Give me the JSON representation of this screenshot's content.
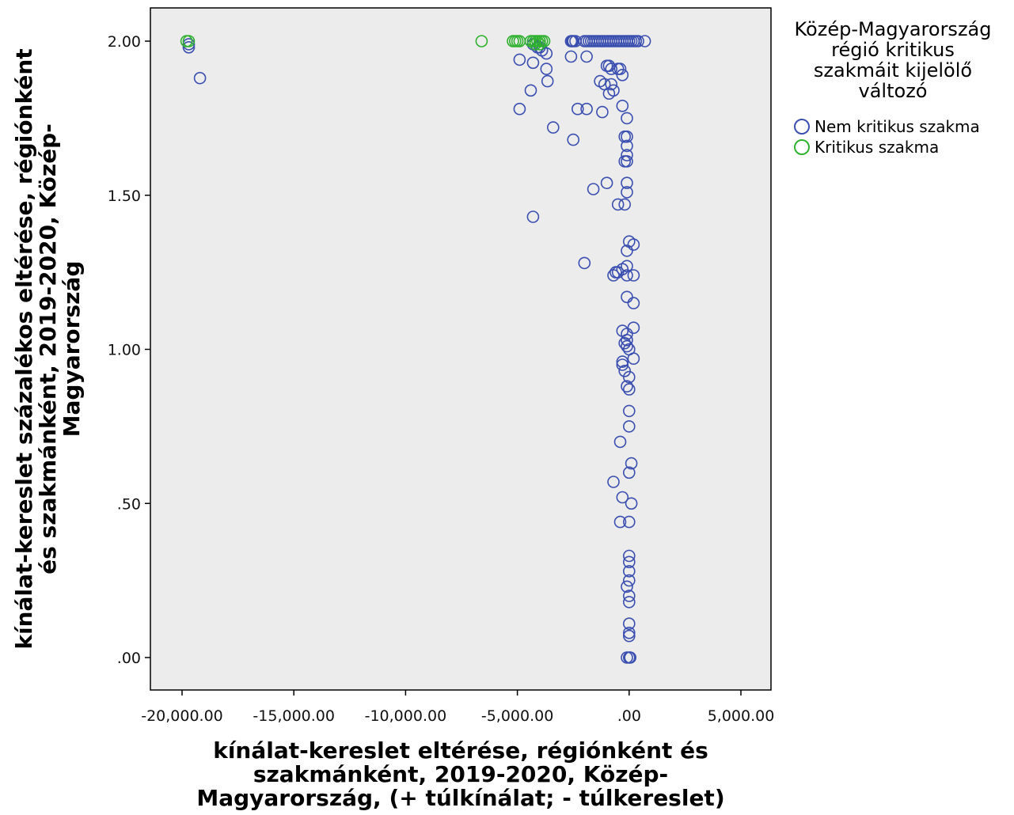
{
  "chart_data": {
    "type": "scatter",
    "xlabel_lines": [
      "kínálat-kereslet eltérése, régiónként és",
      "szakmánként, 2019-2020, Közép-",
      "Magyarország, (+ túlkínálat; - túlkereslet)"
    ],
    "ylabel_lines": [
      "kínálat-kereslet százalékos eltérése, régiónként",
      "és szakmánként, 2019-2020, Közép-",
      "Magyarország"
    ],
    "xlim": [
      -20000,
      5000
    ],
    "ylim": [
      0,
      2
    ],
    "x_ticks": [
      {
        "value": -20000,
        "label": "-20,000.00"
      },
      {
        "value": -15000,
        "label": "-15,000.00"
      },
      {
        "value": -10000,
        "label": "-10,000.00"
      },
      {
        "value": -5000,
        "label": "-5,000.00"
      },
      {
        "value": 0,
        "label": ".00"
      },
      {
        "value": 5000,
        "label": "5,000.00"
      }
    ],
    "y_ticks": [
      {
        "value": 0,
        "label": ".00"
      },
      {
        "value": 0.5,
        "label": ".50"
      },
      {
        "value": 1.0,
        "label": "1.00"
      },
      {
        "value": 1.5,
        "label": "1.50"
      },
      {
        "value": 2.0,
        "label": "2.00"
      }
    ],
    "grid": false,
    "plot_background": "#ececec",
    "legend": {
      "title_lines": [
        "Közép-Magyarország",
        "régió kritikus",
        "szakmáit kijelölő",
        "változó"
      ],
      "placement": "right"
    },
    "series": [
      {
        "name": "Nem kritikus szakma",
        "color": "#3b4fb0",
        "points": [
          [
            -19700,
            1.99
          ],
          [
            -19700,
            1.98
          ],
          [
            -19200,
            1.88
          ],
          [
            -4300,
            1.99
          ],
          [
            -4100,
            1.98
          ],
          [
            -4000,
            1.98
          ],
          [
            -3900,
            1.97
          ],
          [
            -3700,
            1.96
          ],
          [
            -3700,
            1.91
          ],
          [
            -3650,
            1.87
          ],
          [
            -4300,
            1.93
          ],
          [
            -4900,
            1.94
          ],
          [
            -4400,
            1.84
          ],
          [
            -4900,
            1.78
          ],
          [
            -3400,
            1.72
          ],
          [
            -4300,
            1.43
          ],
          [
            -2600,
            2.0
          ],
          [
            -2550,
            2.0
          ],
          [
            -2500,
            2.0
          ],
          [
            -2400,
            2.0
          ],
          [
            -2000,
            2.0
          ],
          [
            -1900,
            2.0
          ],
          [
            -1800,
            2.0
          ],
          [
            -1700,
            2.0
          ],
          [
            -1600,
            2.0
          ],
          [
            -1500,
            2.0
          ],
          [
            -1400,
            2.0
          ],
          [
            -1300,
            2.0
          ],
          [
            -1200,
            2.0
          ],
          [
            -1100,
            2.0
          ],
          [
            -1000,
            2.0
          ],
          [
            -900,
            2.0
          ],
          [
            -800,
            2.0
          ],
          [
            -700,
            2.0
          ],
          [
            -600,
            2.0
          ],
          [
            -500,
            2.0
          ],
          [
            -400,
            2.0
          ],
          [
            -300,
            2.0
          ],
          [
            -200,
            2.0
          ],
          [
            -100,
            2.0
          ],
          [
            0,
            2.0
          ],
          [
            100,
            2.0
          ],
          [
            200,
            2.0
          ],
          [
            300,
            2.0
          ],
          [
            400,
            2.0
          ],
          [
            700,
            2.0
          ],
          [
            -2600,
            1.95
          ],
          [
            -1900,
            1.95
          ],
          [
            -1000,
            1.92
          ],
          [
            -900,
            1.92
          ],
          [
            -800,
            1.91
          ],
          [
            -500,
            1.91
          ],
          [
            -400,
            1.91
          ],
          [
            -300,
            1.89
          ],
          [
            -1300,
            1.87
          ],
          [
            -1100,
            1.86
          ],
          [
            -800,
            1.86
          ],
          [
            -900,
            1.83
          ],
          [
            -700,
            1.84
          ],
          [
            -2300,
            1.78
          ],
          [
            -1900,
            1.78
          ],
          [
            -1200,
            1.77
          ],
          [
            -300,
            1.79
          ],
          [
            -100,
            1.75
          ],
          [
            -2500,
            1.68
          ],
          [
            -200,
            1.69
          ],
          [
            -100,
            1.69
          ],
          [
            -100,
            1.66
          ],
          [
            -100,
            1.63
          ],
          [
            -200,
            1.61
          ],
          [
            -100,
            1.61
          ],
          [
            -1000,
            1.54
          ],
          [
            -100,
            1.54
          ],
          [
            -100,
            1.51
          ],
          [
            -1600,
            1.52
          ],
          [
            -500,
            1.47
          ],
          [
            -200,
            1.47
          ],
          [
            0,
            1.35
          ],
          [
            200,
            1.34
          ],
          [
            -100,
            1.32
          ],
          [
            -2000,
            1.28
          ],
          [
            -700,
            1.24
          ],
          [
            -600,
            1.25
          ],
          [
            -500,
            1.25
          ],
          [
            -300,
            1.26
          ],
          [
            -100,
            1.27
          ],
          [
            -100,
            1.24
          ],
          [
            200,
            1.24
          ],
          [
            -100,
            1.17
          ],
          [
            200,
            1.15
          ],
          [
            200,
            1.07
          ],
          [
            -300,
            1.06
          ],
          [
            -100,
            1.05
          ],
          [
            -100,
            1.03
          ],
          [
            -200,
            1.02
          ],
          [
            -100,
            1.01
          ],
          [
            0,
            1.0
          ],
          [
            200,
            0.97
          ],
          [
            -300,
            0.96
          ],
          [
            -300,
            0.95
          ],
          [
            -200,
            0.93
          ],
          [
            0,
            0.91
          ],
          [
            -100,
            0.88
          ],
          [
            0,
            0.87
          ],
          [
            0,
            0.8
          ],
          [
            0,
            0.75
          ],
          [
            -400,
            0.7
          ],
          [
            100,
            0.63
          ],
          [
            0,
            0.6
          ],
          [
            -700,
            0.57
          ],
          [
            -300,
            0.52
          ],
          [
            100,
            0.5
          ],
          [
            -400,
            0.44
          ],
          [
            0,
            0.44
          ],
          [
            0,
            0.33
          ],
          [
            0,
            0.31
          ],
          [
            0,
            0.28
          ],
          [
            0,
            0.25
          ],
          [
            -100,
            0.23
          ],
          [
            0,
            0.2
          ],
          [
            0,
            0.18
          ],
          [
            0,
            0.11
          ],
          [
            0,
            0.08
          ],
          [
            0,
            0.07
          ],
          [
            0,
            0.0
          ],
          [
            -100,
            0.0
          ],
          [
            50,
            0.0
          ]
        ]
      },
      {
        "name": "Kritikus szakma",
        "color": "#2fb12f",
        "points": [
          [
            -19800,
            2.0
          ],
          [
            -19700,
            2.0
          ],
          [
            -6600,
            2.0
          ],
          [
            -5200,
            2.0
          ],
          [
            -5100,
            2.0
          ],
          [
            -5000,
            2.0
          ],
          [
            -4900,
            2.0
          ],
          [
            -4400,
            2.0
          ],
          [
            -4300,
            2.0
          ],
          [
            -4200,
            2.0
          ],
          [
            -4100,
            2.0
          ],
          [
            -4000,
            2.0
          ],
          [
            -3900,
            2.0
          ],
          [
            -3800,
            2.0
          ],
          [
            -4200,
            1.99
          ],
          [
            -4000,
            1.99
          ]
        ]
      }
    ]
  }
}
